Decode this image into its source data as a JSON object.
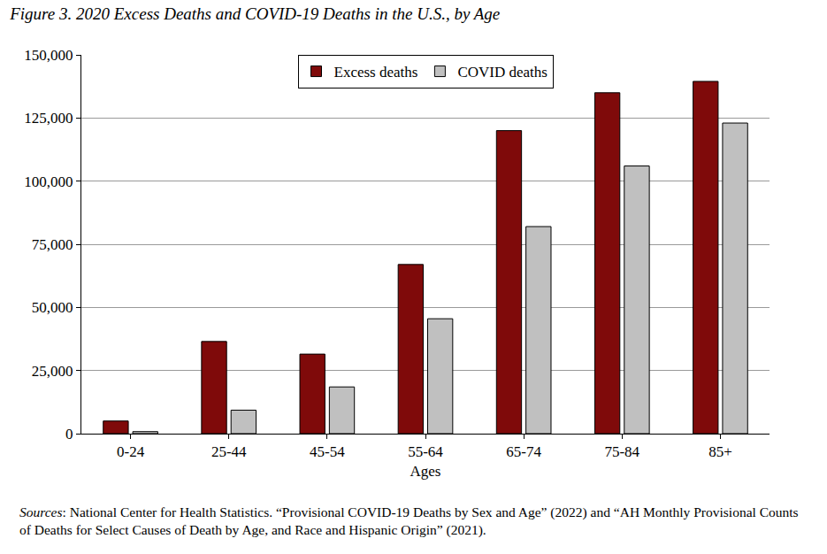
{
  "chart_data": {
    "type": "bar",
    "title": "Figure 3. 2020 Excess Deaths and COVID-19 Deaths in the U.S., by Age",
    "x_label": "Ages",
    "categories": [
      "0-24",
      "25-44",
      "45-54",
      "55-64",
      "65-74",
      "75-84",
      "85+"
    ],
    "series": [
      {
        "name": "Excess deaths",
        "color": "#7f0a0a",
        "values": [
          5000,
          36500,
          31500,
          67000,
          120000,
          135000,
          139500
        ]
      },
      {
        "name": "COVID deaths",
        "color": "#c0c0c0",
        "values": [
          800,
          9300,
          18500,
          45500,
          82000,
          106000,
          123000
        ]
      }
    ],
    "ylim": [
      0,
      150000
    ],
    "yticks": [
      0,
      {
        "value": 25000,
        "label": "25,000"
      },
      {
        "value": 50000,
        "label": "50,000"
      },
      {
        "value": 75000,
        "label": "75,000"
      },
      {
        "value": 100000,
        "label": "100,000"
      },
      {
        "value": 125000,
        "label": "125,000"
      },
      {
        "value": 150000,
        "label": "150,000"
      }
    ],
    "grid": true,
    "legend": "top",
    "source": "Sources: National Center for Health Statistics. “Provisional COVID-19 Deaths by Sex and Age” (2022) and “AH Monthly Provisional Counts of Deaths for Select Causes of Death by Age, and Race and Hispanic Origin” (2021)."
  }
}
